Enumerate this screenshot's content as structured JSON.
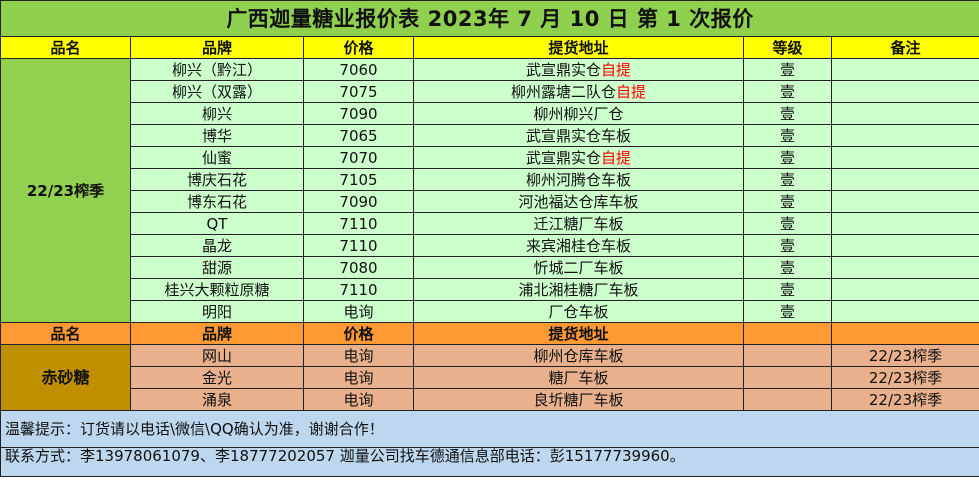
{
  "title": "广西迦量糖业报价表 2023年 7 月 10 日 第 1 次报价",
  "header": {
    "col1": "品名",
    "col2": "品牌",
    "col3": "价格",
    "col4": "提货地址",
    "col5": "等级",
    "col6": "备注"
  },
  "section1": {
    "label": "22/23榨季",
    "rows": [
      {
        "brand": "柳兴（黔江）",
        "price": "7060",
        "addr": "武宣鼎实仓",
        "addr_red": "自提",
        "grade": "壹",
        "note": ""
      },
      {
        "brand": "柳兴（双露）",
        "price": "7075",
        "addr": "柳州露塘二队仓",
        "addr_red": "自提",
        "grade": "壹",
        "note": ""
      },
      {
        "brand": "柳兴",
        "price": "7090",
        "addr": "柳州柳兴厂仓",
        "addr_red": "",
        "grade": "壹",
        "note": ""
      },
      {
        "brand": "博华",
        "price": "7065",
        "addr": "武宣鼎实仓车板",
        "addr_red": "",
        "grade": "壹",
        "note": ""
      },
      {
        "brand": "仙蜜",
        "price": "7070",
        "addr": "武宣鼎实仓",
        "addr_red": "自提",
        "grade": "壹",
        "note": ""
      },
      {
        "brand": "博庆石花",
        "price": "7105",
        "addr": "柳州河腾仓车板",
        "addr_red": "",
        "grade": "壹",
        "note": ""
      },
      {
        "brand": "博东石花",
        "price": "7090",
        "addr": "河池福达仓库车板",
        "addr_red": "",
        "grade": "壹",
        "note": ""
      },
      {
        "brand": "QT",
        "price": "7110",
        "addr": "迁江糖厂车板",
        "addr_red": "",
        "grade": "壹",
        "note": ""
      },
      {
        "brand": "晶龙",
        "price": "7110",
        "addr": "来宾湘桂仓车板",
        "addr_red": "",
        "grade": "壹",
        "note": ""
      },
      {
        "brand": "甜源",
        "price": "7080",
        "addr": "忻城二厂车板",
        "addr_red": "",
        "grade": "壹",
        "note": ""
      },
      {
        "brand": "桂兴大颗粒原糖",
        "price": "7110",
        "addr": "浦北湘桂糖厂车板",
        "addr_red": "",
        "grade": "壹",
        "note": ""
      },
      {
        "brand": "明阳",
        "price": "电询",
        "addr": "厂仓车板",
        "addr_red": "",
        "grade": "壹",
        "note": ""
      }
    ]
  },
  "header2": {
    "col1": "品名",
    "col2": "品牌",
    "col3": "价格",
    "col4": "提货地址",
    "col5": "",
    "col6": ""
  },
  "section2": {
    "label": "赤砂糖",
    "rows": [
      {
        "brand": "网山",
        "price": "电询",
        "addr": "柳州仓库车板",
        "grade": "",
        "note": "22/23榨季"
      },
      {
        "brand": "金光",
        "price": "电询",
        "addr": "糖厂车板",
        "grade": "",
        "note": "22/23榨季"
      },
      {
        "brand": "涌泉",
        "price": "电询",
        "addr": "良圻糖厂车板",
        "grade": "",
        "note": "22/23榨季"
      }
    ]
  },
  "notes": {
    "line1": "温馨提示：订货请以电话\\微信\\QQ确认为准，谢谢合作！",
    "line2": "联系方式：李13978061079、李18777202057    迦量公司找车德通信息部电话：彭15177739960。"
  }
}
